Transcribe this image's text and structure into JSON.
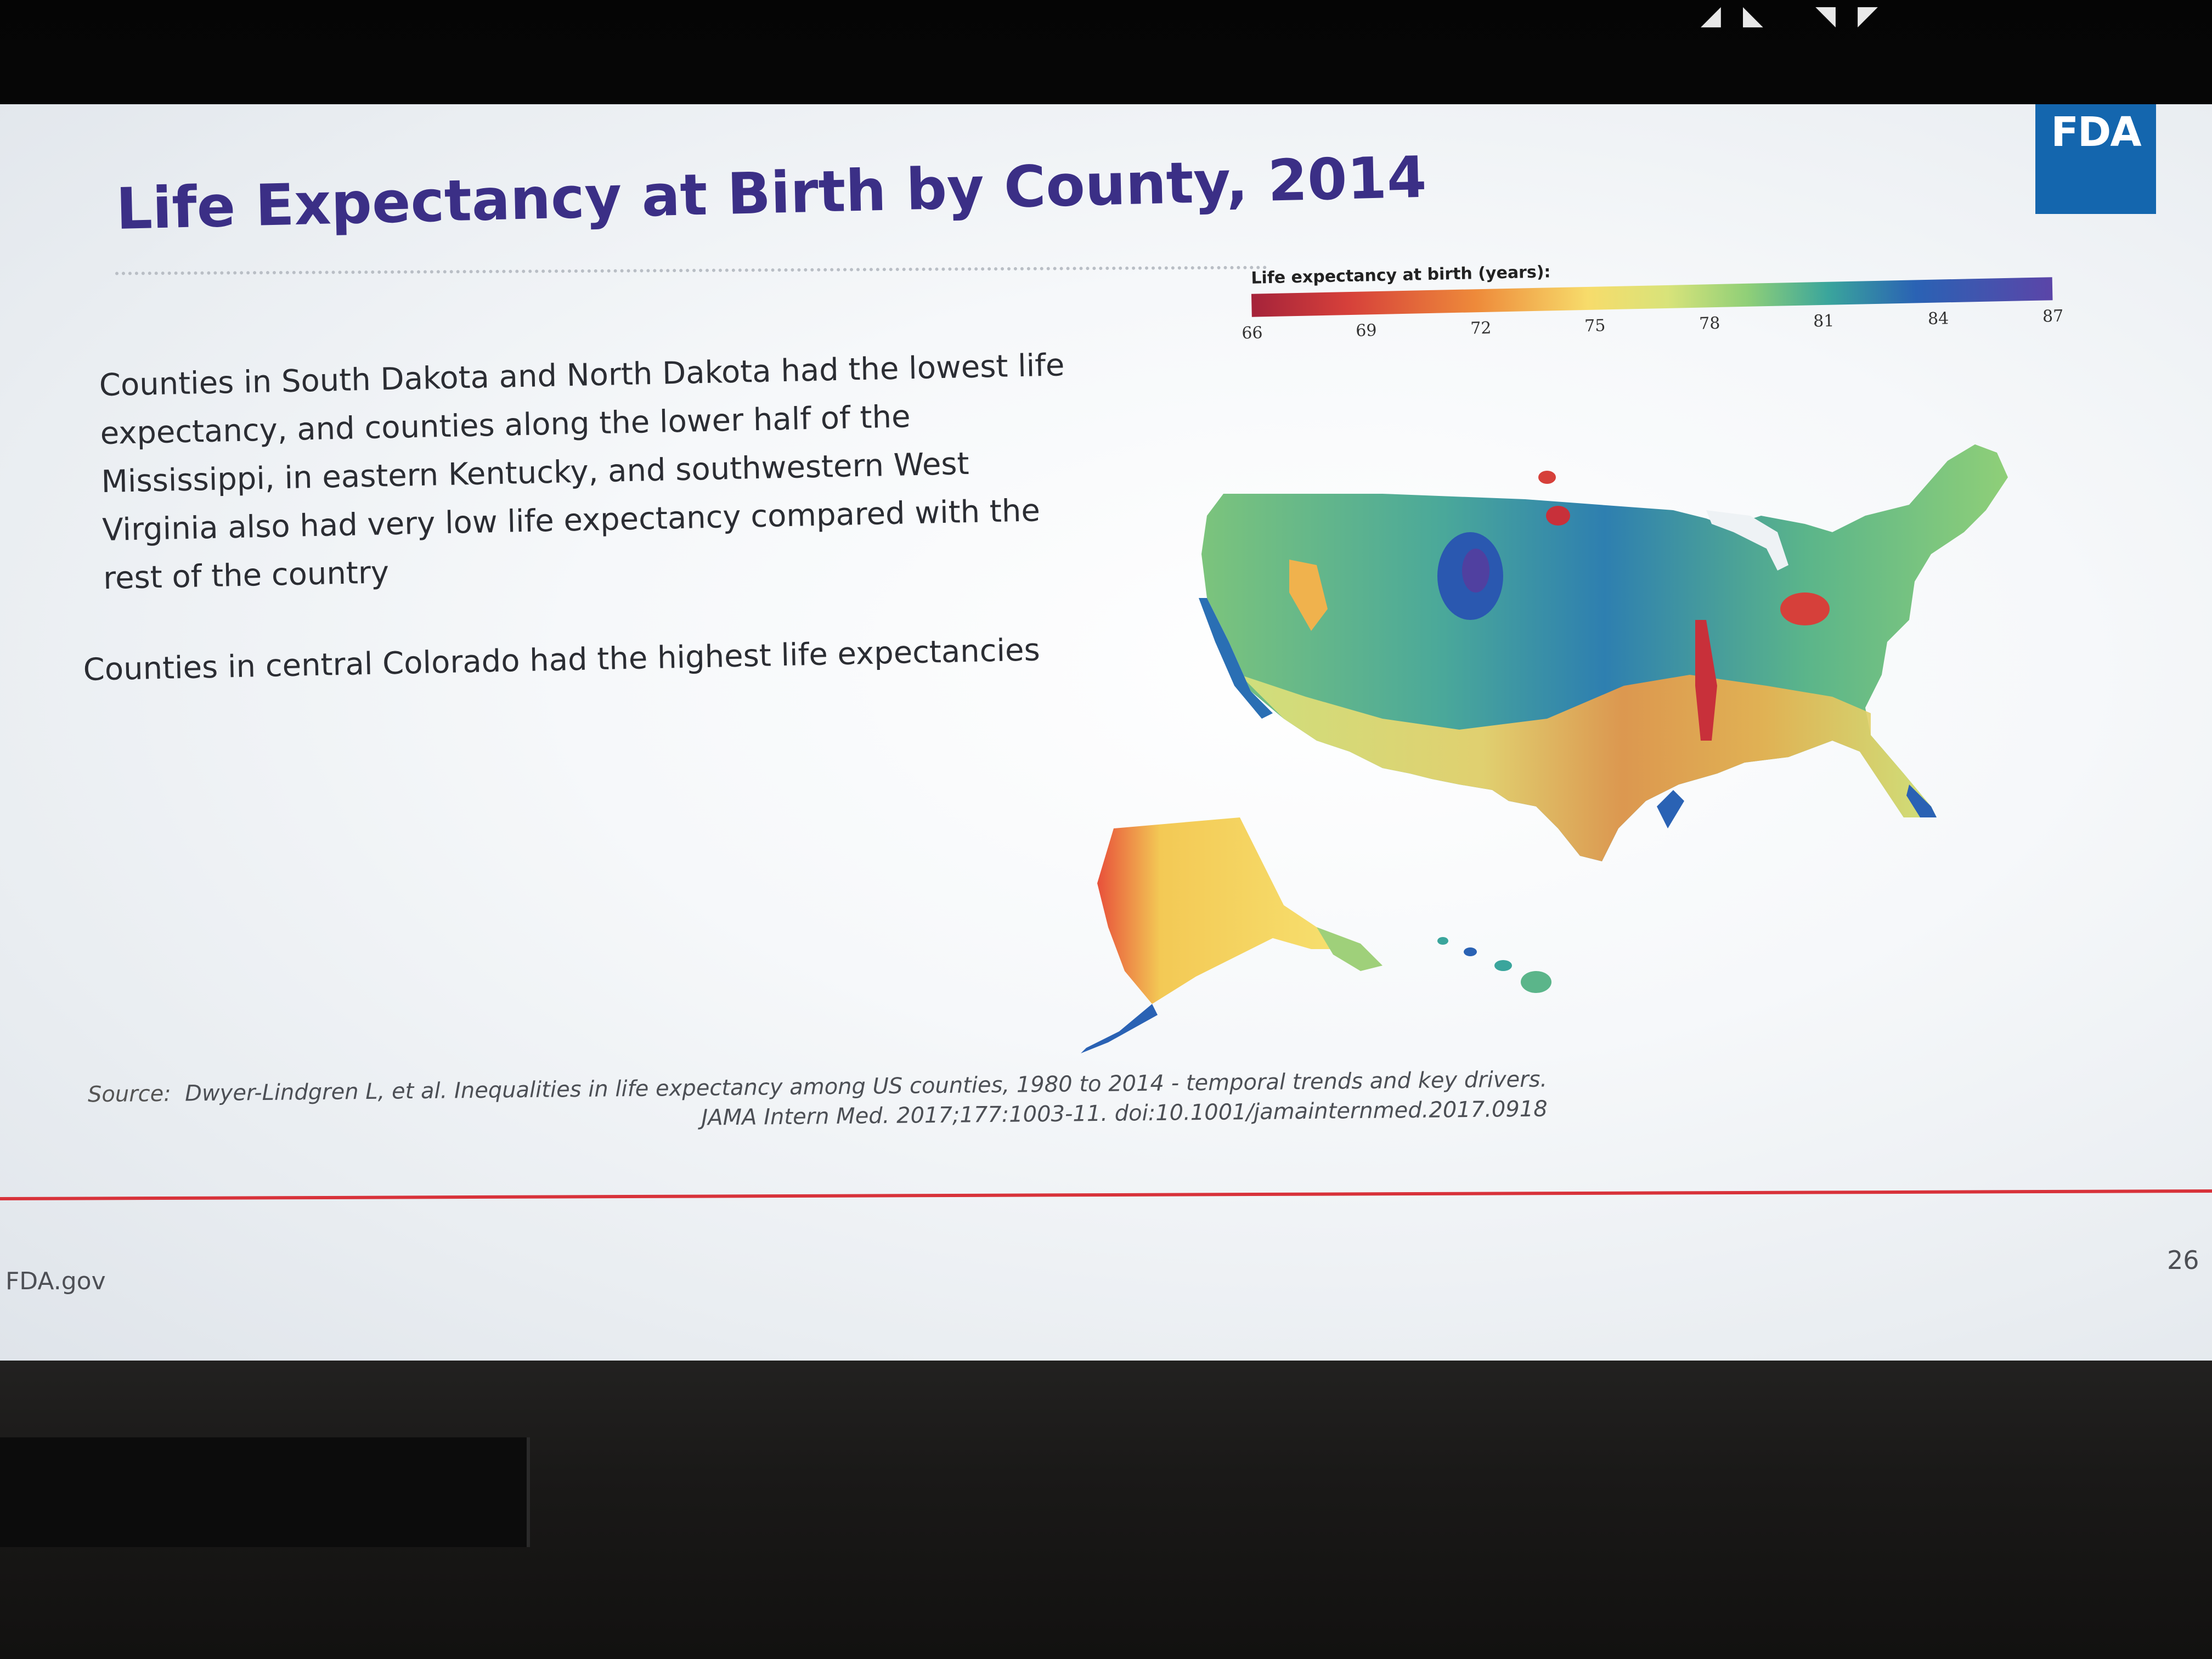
{
  "slide": {
    "title": "Life Expectancy at Birth by County, 2014",
    "logo": "FDA",
    "paragraph_1": "Counties in South Dakota and North Dakota had the lowest life expectancy, and counties along the lower half of the Mississippi, in eastern Kentucky, and southwestern West Virginia also had very low life expectancy compared with the rest of the country",
    "paragraph_2": "Counties in central Colorado had the highest life expectancies",
    "source_label": "Source:",
    "source_line_1": "Dwyer-Lindgren L, et al. Inequalities in life expectancy among US counties, 1980 to 2014 - temporal trends and key drivers.",
    "source_line_2": "JAMA Intern Med. 2017;177:1003-11. doi:10.1001/jamainternmed.2017.0918",
    "footer": "FDA.gov",
    "page_number": "26"
  },
  "legend": {
    "title": "Life expectancy at birth (years):",
    "ticks": [
      "66",
      "69",
      "72",
      "75",
      "78",
      "81",
      "84",
      "87"
    ],
    "colors": [
      "#a5233a",
      "#d6403a",
      "#ee8a3a",
      "#f7dc6b",
      "#d8e37a",
      "#8fcf78",
      "#3aa59c",
      "#2a62b4",
      "#5b45a8"
    ]
  },
  "colors": {
    "title": "#3b2f86",
    "fda_blue": "#1466ae",
    "footer_rule": "#d8323a"
  }
}
